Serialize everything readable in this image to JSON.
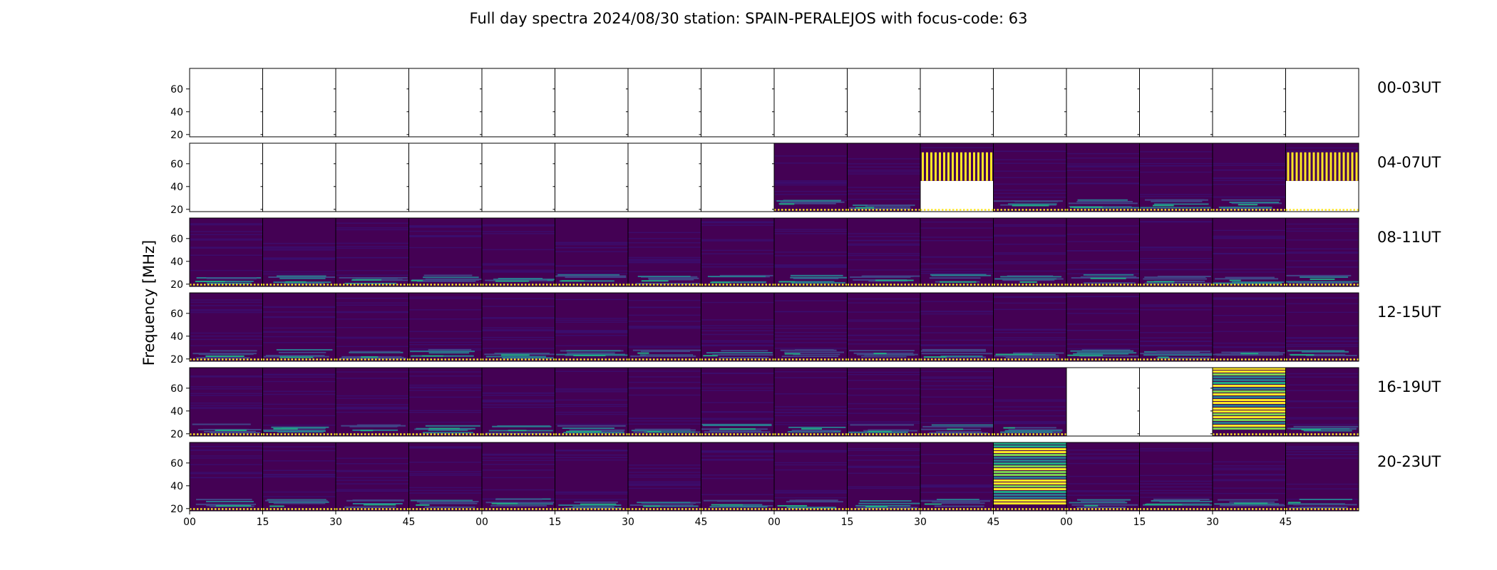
{
  "chart_data": {
    "type": "heatmap",
    "title": "Full day spectra 2024/08/30 station: SPAIN-PERALEJOS with focus-code: 63",
    "ylabel": "Frequency [MHz]",
    "xlabel": "",
    "y_ticks": [
      20,
      40,
      60
    ],
    "ylim": [
      18,
      78
    ],
    "x_tick_labels": [
      "00",
      "15",
      "30",
      "45",
      "00",
      "15",
      "30",
      "45",
      "00",
      "15",
      "30",
      "45",
      "00",
      "15",
      "30",
      "45"
    ],
    "colormap": "viridis",
    "panels_per_row": 16,
    "rows": [
      {
        "label": "00-03UT",
        "panels": [
          "empty",
          "empty",
          "empty",
          "empty",
          "empty",
          "empty",
          "empty",
          "empty",
          "empty",
          "empty",
          "empty",
          "empty",
          "empty",
          "empty",
          "empty",
          "empty"
        ]
      },
      {
        "label": "04-07UT",
        "panels": [
          "empty",
          "empty",
          "empty",
          "empty",
          "empty",
          "empty",
          "empty",
          "empty",
          "data",
          "data",
          "burst-top",
          "data",
          "data",
          "data",
          "data",
          "burst-top"
        ]
      },
      {
        "label": "08-11UT",
        "panels": [
          "data",
          "data",
          "data",
          "data",
          "data",
          "data",
          "data",
          "data",
          "data",
          "data",
          "data",
          "data",
          "data",
          "data",
          "data",
          "data"
        ]
      },
      {
        "label": "12-15UT",
        "panels": [
          "data",
          "data",
          "data",
          "data",
          "data",
          "data",
          "data",
          "data",
          "data",
          "data",
          "data",
          "data",
          "data",
          "data",
          "data",
          "data"
        ]
      },
      {
        "label": "16-19UT",
        "panels": [
          "data",
          "data",
          "data",
          "data",
          "data",
          "data",
          "data",
          "data",
          "data",
          "data",
          "data",
          "data",
          "empty",
          "empty",
          "bright",
          "data"
        ]
      },
      {
        "label": "20-23UT",
        "panels": [
          "data",
          "data",
          "data",
          "data",
          "data",
          "data",
          "data",
          "data",
          "data",
          "data",
          "data",
          "bright",
          "data",
          "data",
          "data",
          "data"
        ]
      }
    ]
  },
  "colors": {
    "background": "#440154",
    "band_dark": "#3b0f70",
    "band_mid": "#414487",
    "band_teal": "#2a788e",
    "band_green": "#22a884",
    "band_lime": "#7ad151",
    "band_yellow": "#fde725",
    "marker_dot": "#fde725"
  }
}
